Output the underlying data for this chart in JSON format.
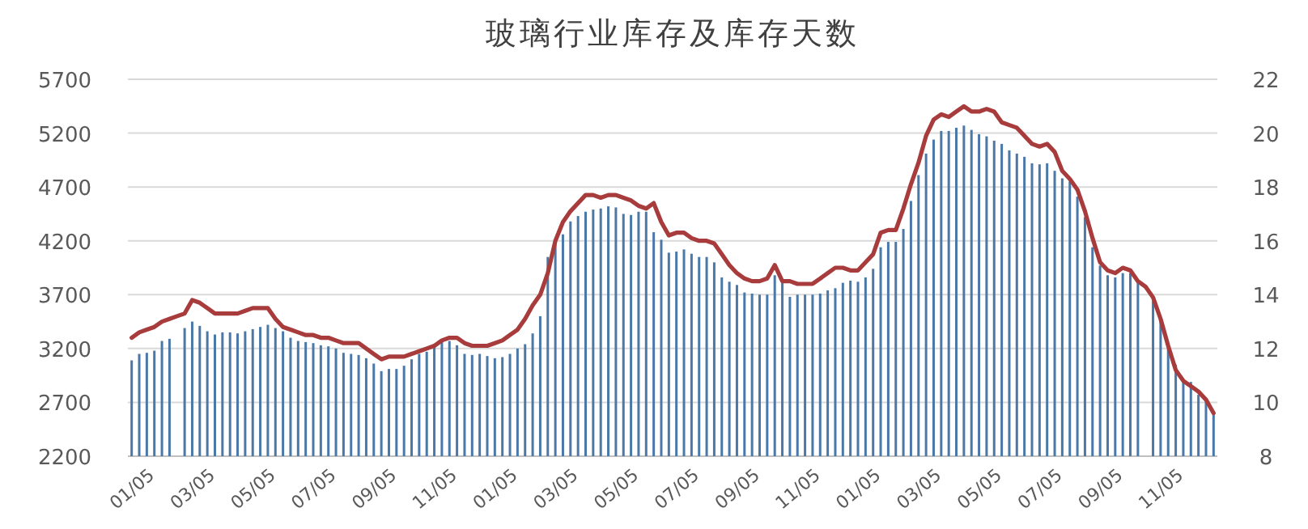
{
  "chart_data": {
    "type": "bar",
    "title": "玻璃行业库存及库存天数",
    "categories": [
      "01/05",
      null,
      null,
      null,
      null,
      null,
      null,
      null,
      "03/05",
      null,
      null,
      null,
      null,
      null,
      null,
      null,
      "05/05",
      null,
      null,
      null,
      null,
      null,
      null,
      null,
      "07/05",
      null,
      null,
      null,
      null,
      null,
      null,
      null,
      "09/05",
      null,
      null,
      null,
      null,
      null,
      null,
      null,
      "11/05",
      null,
      null,
      null,
      null,
      null,
      null,
      null,
      "01/05",
      null,
      null,
      null,
      null,
      null,
      null,
      null,
      "03/05",
      null,
      null,
      null,
      null,
      null,
      null,
      null,
      "05/05",
      null,
      null,
      null,
      null,
      null,
      null,
      null,
      "07/05",
      null,
      null,
      null,
      null,
      null,
      null,
      null,
      "09/05",
      null,
      null,
      null,
      null,
      null,
      null,
      null,
      "11/05",
      null,
      null,
      null,
      null,
      null,
      null,
      null,
      "01/05",
      null,
      null,
      null,
      null,
      null,
      null,
      null,
      "03/05",
      null,
      null,
      null,
      null,
      null,
      null,
      null,
      "05/05",
      null,
      null,
      null,
      null,
      null,
      null,
      null,
      "07/05",
      null,
      null,
      null,
      null,
      null,
      null,
      null,
      "09/05",
      null,
      null,
      null,
      null,
      null,
      null,
      null,
      "11/05",
      null,
      null,
      null,
      null,
      null,
      null,
      null
    ],
    "series": [
      {
        "color": "#4a78a8",
        "values": [
          3090,
          3150,
          3160,
          3180,
          3270,
          3290,
          null,
          3390,
          3450,
          3410,
          3360,
          3330,
          3350,
          3350,
          3340,
          3360,
          3380,
          3400,
          3420,
          3390,
          3360,
          3300,
          3270,
          3260,
          3250,
          3230,
          3220,
          3200,
          3160,
          3150,
          3140,
          3110,
          3060,
          2990,
          3010,
          3010,
          3040,
          3100,
          3150,
          3170,
          3220,
          3260,
          3270,
          3230,
          3150,
          3140,
          3150,
          3130,
          3110,
          3120,
          3150,
          3200,
          3240,
          3340,
          3500,
          4050,
          4180,
          4260,
          4380,
          4430,
          4470,
          4490,
          4500,
          4520,
          4510,
          4450,
          4440,
          4470,
          4470,
          4280,
          4210,
          4090,
          4100,
          4120,
          4080,
          4050,
          4050,
          4000,
          3860,
          3820,
          3790,
          3720,
          3710,
          3700,
          3700,
          3880,
          3810,
          3680,
          3700,
          3700,
          3700,
          3710,
          3740,
          3760,
          3810,
          3830,
          3820,
          3860,
          3940,
          4140,
          4190,
          4190,
          4310,
          4570,
          4810,
          5010,
          5140,
          5220,
          5220,
          5250,
          5270,
          5230,
          5190,
          5170,
          5130,
          5100,
          5040,
          5010,
          4980,
          4920,
          4910,
          4920,
          4850,
          4780,
          4750,
          4610,
          4420,
          4140,
          3970,
          3880,
          3860,
          3900,
          3900,
          3810,
          null,
          3640,
          3480,
          3220,
          3050,
          2910,
          2890,
          2770,
          2720,
          2600
        ]
      },
      {
        "type": "line",
        "axis": "y2",
        "color": "#a83c3c",
        "values": [
          12.4,
          12.6,
          12.7,
          12.8,
          13.0,
          13.1,
          13.2,
          13.3,
          13.8,
          13.7,
          13.5,
          13.3,
          13.3,
          13.3,
          13.3,
          13.4,
          13.5,
          13.5,
          13.5,
          13.1,
          12.8,
          12.7,
          12.6,
          12.5,
          12.5,
          12.4,
          12.4,
          12.3,
          12.2,
          12.2,
          12.2,
          12.0,
          11.8,
          11.6,
          11.7,
          11.7,
          11.7,
          11.8,
          11.9,
          12.0,
          12.1,
          12.3,
          12.4,
          12.4,
          12.2,
          12.1,
          12.1,
          12.1,
          12.2,
          12.3,
          12.5,
          12.7,
          13.1,
          13.6,
          14.0,
          14.8,
          16.0,
          16.7,
          17.1,
          17.4,
          17.7,
          17.7,
          17.6,
          17.7,
          17.7,
          17.6,
          17.5,
          17.3,
          17.2,
          17.4,
          16.7,
          16.2,
          16.3,
          16.3,
          16.1,
          16.0,
          16.0,
          15.9,
          15.5,
          15.1,
          14.8,
          14.6,
          14.5,
          14.5,
          14.6,
          15.1,
          14.5,
          14.5,
          14.4,
          14.4,
          14.4,
          14.6,
          14.8,
          15.0,
          15.0,
          14.9,
          14.9,
          15.2,
          15.5,
          16.3,
          16.4,
          16.4,
          17.2,
          18.1,
          18.9,
          19.9,
          20.5,
          20.7,
          20.6,
          20.8,
          21.0,
          20.8,
          20.8,
          20.9,
          20.8,
          20.4,
          20.3,
          20.2,
          19.9,
          19.6,
          19.5,
          19.6,
          19.3,
          18.6,
          18.3,
          17.9,
          17.1,
          16.1,
          15.2,
          14.9,
          14.8,
          15.0,
          14.9,
          14.5,
          14.3,
          13.9,
          13.1,
          12.1,
          11.2,
          10.8,
          10.6,
          10.4,
          10.1,
          9.6
        ]
      }
    ],
    "ylim": [
      2200,
      5700
    ],
    "yticks": [
      2200,
      2700,
      3200,
      3700,
      4200,
      4700,
      5200,
      5700
    ],
    "y2lim": [
      8,
      22
    ],
    "y2ticks": [
      8,
      10,
      12,
      14,
      16,
      18,
      20,
      22
    ],
    "grid": "y"
  }
}
